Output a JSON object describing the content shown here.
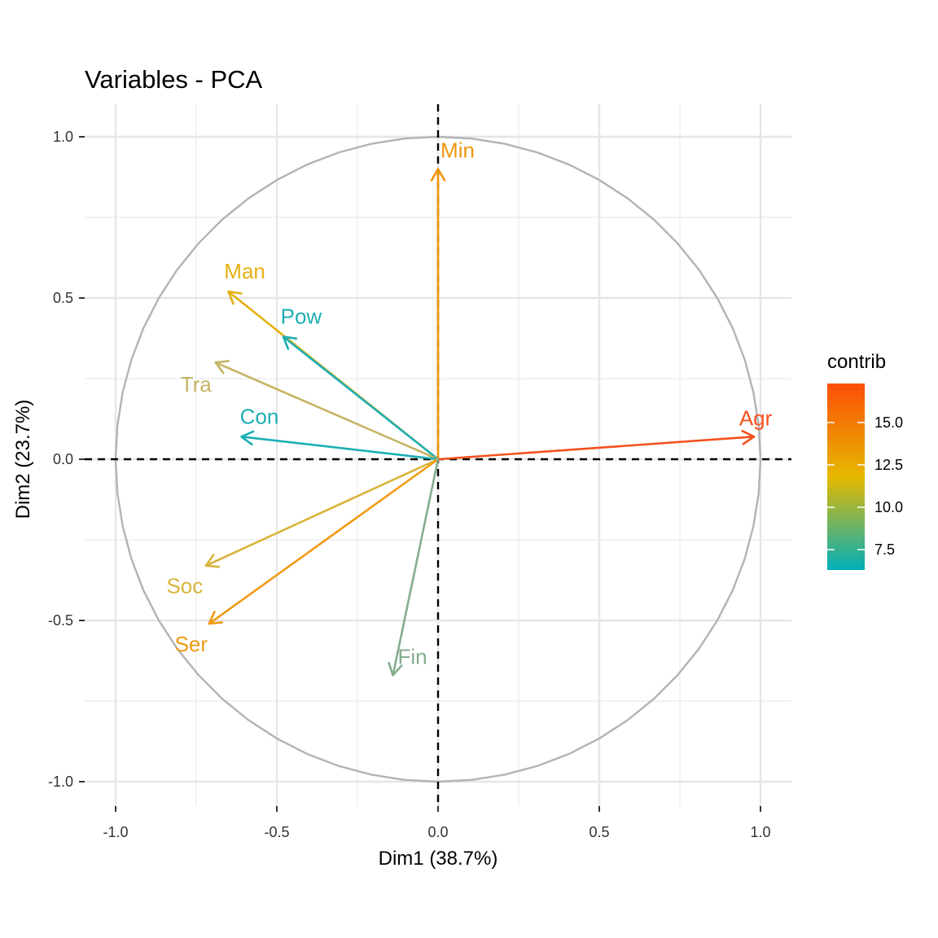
{
  "chart_data": {
    "type": "scatter",
    "subtype": "pca-variable-correlation-circle",
    "title": "Variables - PCA",
    "xlabel": "Dim1 (38.7%)",
    "ylabel": "Dim2 (23.7%)",
    "xlim": [
      -1.1,
      1.1
    ],
    "ylim": [
      -1.06,
      1.1
    ],
    "x_ticks": [
      -1.0,
      -0.5,
      0.0,
      0.5,
      1.0
    ],
    "y_ticks": [
      -1.0,
      -0.5,
      0.0,
      0.5,
      1.0
    ],
    "x_tick_labels": [
      "-1.0",
      "-0.5",
      "0.0",
      "0.5",
      "1.0"
    ],
    "y_tick_labels": [
      "-1.0",
      "-0.5",
      "0.0",
      "0.5",
      "1.0"
    ],
    "grid": true,
    "unit_circle": true,
    "reference_lines": [
      {
        "axis": "x",
        "value": 0
      },
      {
        "axis": "y",
        "value": 0
      }
    ],
    "variables": [
      {
        "name": "Agr",
        "x": 0.98,
        "y": 0.07,
        "contrib": 17.2,
        "color": "#F4511E"
      },
      {
        "name": "Min",
        "x": 0.0,
        "y": 0.9,
        "contrib": 13.3,
        "color": "#F0960A"
      },
      {
        "name": "Man",
        "x": -0.65,
        "y": 0.52,
        "contrib": 12.0,
        "color": "#E5B010"
      },
      {
        "name": "Pow",
        "x": -0.48,
        "y": 0.38,
        "contrib": 6.5,
        "color": "#1EAFB4"
      },
      {
        "name": "Tra",
        "x": -0.69,
        "y": 0.3,
        "contrib": 10.2,
        "color": "#C5B462"
      },
      {
        "name": "Con",
        "x": -0.61,
        "y": 0.07,
        "contrib": 6.6,
        "color": "#1BAFB5"
      },
      {
        "name": "Soc",
        "x": -0.72,
        "y": -0.33,
        "contrib": 11.0,
        "color": "#D9B43A"
      },
      {
        "name": "Ser",
        "x": -0.71,
        "y": -0.51,
        "contrib": 13.0,
        "color": "#F09A12"
      },
      {
        "name": "Fin",
        "x": -0.14,
        "y": -0.67,
        "contrib": 8.2,
        "color": "#84AD8E"
      }
    ],
    "legend": {
      "title": "contrib",
      "position": "right",
      "range": [
        6.3,
        17.3
      ],
      "breaks": [
        7.5,
        10.0,
        12.5,
        15.0
      ],
      "break_labels": [
        "7.5",
        "10.0",
        "12.5",
        "15.0"
      ],
      "gradient_colors": [
        "#00AFBB",
        "#E7B800",
        "#FC4E07"
      ]
    }
  }
}
